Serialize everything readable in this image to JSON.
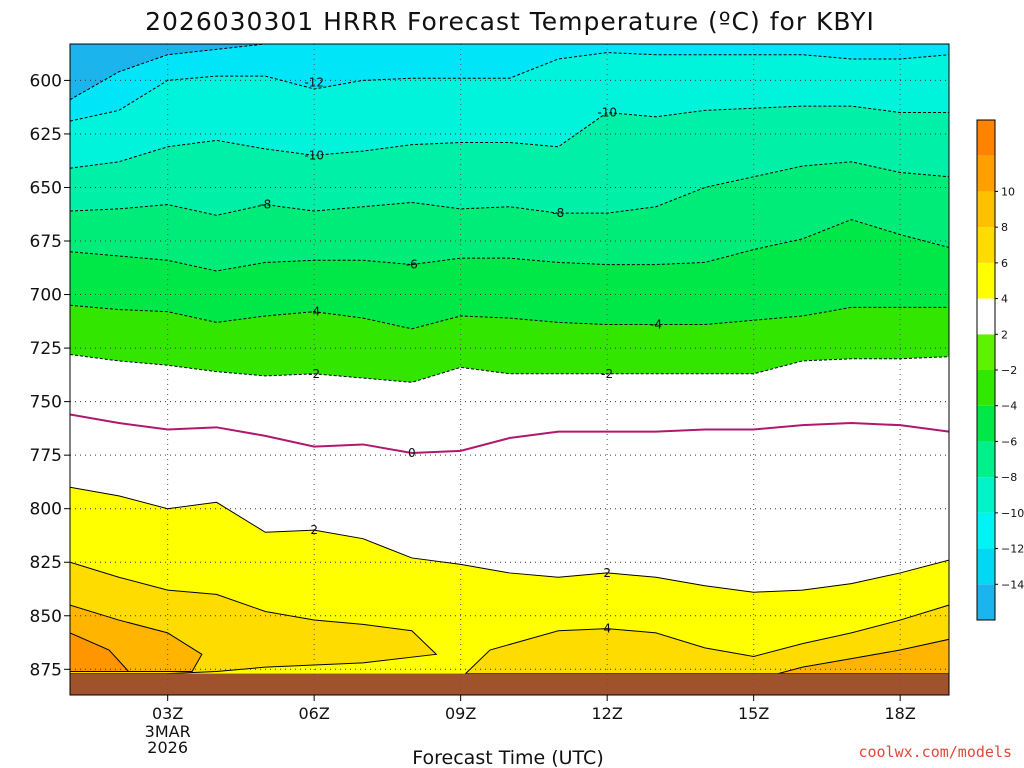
{
  "chart_data": {
    "type": "contour",
    "title": "2026030301 HRRR Forecast Temperature (ºC) for KBYI",
    "xlabel": "Forecast Time (UTC)",
    "ylabel": "",
    "credit": "coolwx.com/models",
    "x_hours": [
      1,
      19
    ],
    "y_range": [
      583,
      887
    ],
    "x_ticks": [
      {
        "hour": 3,
        "label": "03Z",
        "sub": [
          "3MAR",
          "2026"
        ]
      },
      {
        "hour": 6,
        "label": "06Z"
      },
      {
        "hour": 9,
        "label": "09Z"
      },
      {
        "hour": 12,
        "label": "12Z"
      },
      {
        "hour": 15,
        "label": "15Z"
      },
      {
        "hour": 18,
        "label": "18Z"
      }
    ],
    "y_ticks": [
      600,
      625,
      650,
      675,
      700,
      725,
      750,
      775,
      800,
      825,
      850,
      875
    ],
    "colorbar": {
      "levels": [
        "-14",
        "-12",
        "-10",
        "-8",
        "-6",
        "-4",
        "-2",
        "2",
        "4",
        "6",
        "8",
        "10"
      ],
      "colors": [
        "#1cb4ec",
        "#00d8f4",
        "#00f4f4",
        "#00f4c8",
        "#00f08c",
        "#00e848",
        "#30e800",
        "#5ef200",
        "#ffffff",
        "#ffff00",
        "#ffdc00",
        "#ffc000",
        "#ffa000",
        "#ff8200"
      ]
    },
    "contours": [
      {
        "value": -14,
        "label": "",
        "points": [
          [
            1,
            609
          ],
          [
            2,
            596
          ],
          [
            3,
            588
          ],
          [
            5,
            583
          ]
        ]
      },
      {
        "value": -12,
        "label": "-12",
        "points": [
          [
            1,
            619
          ],
          [
            2,
            614
          ],
          [
            3,
            600
          ],
          [
            4,
            598
          ],
          [
            5,
            598
          ],
          [
            6,
            604
          ],
          [
            7,
            600
          ],
          [
            8,
            599
          ],
          [
            9,
            599
          ],
          [
            10,
            599
          ],
          [
            11,
            590
          ],
          [
            12,
            587
          ],
          [
            13,
            588
          ],
          [
            14,
            588
          ],
          [
            15,
            588
          ],
          [
            16,
            588
          ],
          [
            17,
            590
          ],
          [
            18,
            590
          ],
          [
            19,
            588
          ]
        ]
      },
      {
        "value": -10,
        "label": "-10",
        "points": [
          [
            1,
            641
          ],
          [
            2,
            638
          ],
          [
            3,
            631
          ],
          [
            4,
            628
          ],
          [
            5,
            632
          ],
          [
            6,
            635
          ],
          [
            7,
            633
          ],
          [
            8,
            630
          ],
          [
            9,
            629
          ],
          [
            10,
            629
          ],
          [
            11,
            631
          ],
          [
            12,
            615
          ],
          [
            13,
            617
          ],
          [
            14,
            614
          ],
          [
            15,
            613
          ],
          [
            16,
            612
          ],
          [
            17,
            612
          ],
          [
            18,
            615
          ],
          [
            19,
            615
          ]
        ]
      },
      {
        "value": -8,
        "label": "-8",
        "points": [
          [
            1,
            661
          ],
          [
            2,
            660
          ],
          [
            3,
            658
          ],
          [
            4,
            663
          ],
          [
            5,
            658
          ],
          [
            6,
            661
          ],
          [
            7,
            659
          ],
          [
            8,
            657
          ],
          [
            9,
            660
          ],
          [
            10,
            659
          ],
          [
            11,
            662
          ],
          [
            12,
            662
          ],
          [
            13,
            659
          ],
          [
            14,
            650
          ],
          [
            15,
            645
          ],
          [
            16,
            640
          ],
          [
            17,
            638
          ],
          [
            18,
            643
          ],
          [
            19,
            645
          ]
        ]
      },
      {
        "value": -6,
        "label": "-6",
        "points": [
          [
            1,
            680
          ],
          [
            2,
            682
          ],
          [
            3,
            684
          ],
          [
            4,
            689
          ],
          [
            5,
            685
          ],
          [
            6,
            684
          ],
          [
            7,
            684
          ],
          [
            8,
            686
          ],
          [
            9,
            683
          ],
          [
            10,
            683
          ],
          [
            11,
            685
          ],
          [
            12,
            686
          ],
          [
            13,
            686
          ],
          [
            14,
            685
          ],
          [
            15,
            679
          ],
          [
            16,
            674
          ],
          [
            17,
            665
          ],
          [
            18,
            672
          ],
          [
            19,
            678
          ]
        ]
      },
      {
        "value": -4,
        "label": "-4",
        "points": [
          [
            1,
            705
          ],
          [
            2,
            707
          ],
          [
            3,
            708
          ],
          [
            4,
            713
          ],
          [
            5,
            710
          ],
          [
            6,
            708
          ],
          [
            7,
            711
          ],
          [
            8,
            716
          ],
          [
            9,
            710
          ],
          [
            10,
            711
          ],
          [
            11,
            713
          ],
          [
            12,
            714
          ],
          [
            13,
            714
          ],
          [
            14,
            714
          ],
          [
            15,
            712
          ],
          [
            16,
            710
          ],
          [
            17,
            706
          ],
          [
            18,
            706
          ],
          [
            19,
            706
          ]
        ]
      },
      {
        "value": -2,
        "label": "-2",
        "points": [
          [
            1,
            728
          ],
          [
            2,
            731
          ],
          [
            3,
            733
          ],
          [
            4,
            736
          ],
          [
            5,
            738
          ],
          [
            6,
            737
          ],
          [
            7,
            739
          ],
          [
            8,
            741
          ],
          [
            9,
            734
          ],
          [
            10,
            737
          ],
          [
            11,
            737
          ],
          [
            12,
            737
          ],
          [
            13,
            737
          ],
          [
            14,
            737
          ],
          [
            15,
            737
          ],
          [
            16,
            731
          ],
          [
            17,
            730
          ],
          [
            18,
            730
          ],
          [
            19,
            729
          ]
        ]
      },
      {
        "value": 0,
        "label": "0",
        "points": [
          [
            1,
            756
          ],
          [
            2,
            760
          ],
          [
            3,
            763
          ],
          [
            4,
            762
          ],
          [
            5,
            766
          ],
          [
            6,
            771
          ],
          [
            7,
            770
          ],
          [
            8,
            774
          ],
          [
            9,
            773
          ],
          [
            10,
            767
          ],
          [
            11,
            764
          ],
          [
            12,
            764
          ],
          [
            13,
            764
          ],
          [
            14,
            763
          ],
          [
            15,
            763
          ],
          [
            16,
            761
          ],
          [
            17,
            760
          ],
          [
            18,
            761
          ],
          [
            19,
            764
          ]
        ]
      },
      {
        "value": 2,
        "label": "2",
        "points": [
          [
            1,
            790
          ],
          [
            2,
            794
          ],
          [
            3,
            800
          ],
          [
            4,
            797
          ],
          [
            5,
            811
          ],
          [
            6,
            810
          ],
          [
            7,
            814
          ],
          [
            8,
            823
          ],
          [
            9,
            826
          ],
          [
            10,
            830
          ],
          [
            11,
            832
          ],
          [
            12,
            830
          ],
          [
            13,
            832
          ],
          [
            14,
            836
          ],
          [
            15,
            839
          ],
          [
            16,
            838
          ],
          [
            17,
            835
          ],
          [
            18,
            830
          ],
          [
            19,
            824
          ]
        ]
      }
    ]
  }
}
